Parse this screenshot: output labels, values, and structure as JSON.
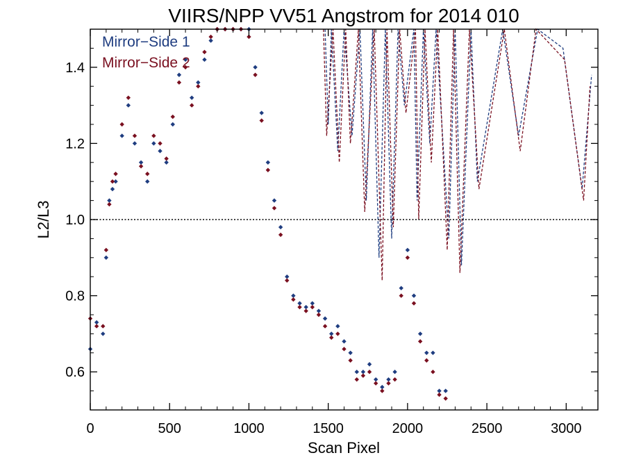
{
  "chart_data": {
    "type": "scatter",
    "title": "VIIRS/NPP VV51 Angstrom for 2014 010",
    "xlabel": "Scan Pixel",
    "ylabel": "L2/L3",
    "xlim": [
      0,
      3200
    ],
    "ylim": [
      0.5,
      1.5
    ],
    "xticks": [
      0,
      500,
      1000,
      1500,
      2000,
      2500,
      3000
    ],
    "yticks": [
      0.6,
      0.8,
      1.0,
      1.2,
      1.4
    ],
    "ytick_labels": [
      "0.6",
      "0.8",
      "1.0",
      "1.2",
      "1.4"
    ],
    "reference_line": 1.0,
    "legend_position": "top-left",
    "series": [
      {
        "name": "Mirror−Side 1",
        "color": "#1f3d80",
        "marker": "diamond",
        "x": [
          0,
          40,
          80,
          100,
          120,
          140,
          160,
          200,
          240,
          280,
          320,
          360,
          400,
          440,
          480,
          520,
          560,
          600,
          640,
          680,
          720,
          760,
          800,
          850,
          900,
          950,
          1000,
          1040,
          1080,
          1120,
          1160,
          1200,
          1240,
          1280,
          1320,
          1360,
          1400,
          1440,
          1480,
          1520,
          1560,
          1600,
          1640,
          1680,
          1720,
          1760,
          1800,
          1840,
          1880,
          1920,
          1960,
          2000,
          2040,
          2080,
          2120,
          2160,
          2200,
          2240
        ],
        "y": [
          0.66,
          0.73,
          0.7,
          0.9,
          1.05,
          1.08,
          1.1,
          1.22,
          1.3,
          1.2,
          1.15,
          1.1,
          1.2,
          1.18,
          1.15,
          1.25,
          1.38,
          1.42,
          1.32,
          1.36,
          1.42,
          1.47,
          1.5,
          1.5,
          1.5,
          1.5,
          1.5,
          1.4,
          1.28,
          1.15,
          1.05,
          0.98,
          0.85,
          0.8,
          0.78,
          0.77,
          0.78,
          0.76,
          0.74,
          0.7,
          0.72,
          0.68,
          0.65,
          0.6,
          0.6,
          0.62,
          0.58,
          0.56,
          0.58,
          0.6,
          0.82,
          0.92,
          0.8,
          0.7,
          0.65,
          0.65,
          0.55,
          0.55
        ]
      },
      {
        "name": "Mirror−Side 2",
        "color": "#7a1020",
        "marker": "diamond",
        "x": [
          0,
          40,
          80,
          100,
          120,
          140,
          160,
          200,
          240,
          280,
          320,
          360,
          400,
          440,
          480,
          520,
          560,
          600,
          640,
          680,
          720,
          760,
          800,
          850,
          900,
          950,
          1000,
          1040,
          1080,
          1120,
          1160,
          1200,
          1240,
          1280,
          1320,
          1360,
          1400,
          1440,
          1480,
          1520,
          1560,
          1600,
          1640,
          1680,
          1720,
          1760,
          1800,
          1840,
          1880,
          1920,
          1960,
          2000,
          2040,
          2080,
          2120,
          2160,
          2200,
          2240
        ],
        "y": [
          0.74,
          0.72,
          0.72,
          0.92,
          1.04,
          1.1,
          1.12,
          1.25,
          1.32,
          1.22,
          1.14,
          1.12,
          1.22,
          1.2,
          1.16,
          1.27,
          1.36,
          1.4,
          1.3,
          1.35,
          1.44,
          1.48,
          1.5,
          1.5,
          1.5,
          1.5,
          1.48,
          1.38,
          1.26,
          1.13,
          1.03,
          0.96,
          0.84,
          0.79,
          0.77,
          0.76,
          0.77,
          0.75,
          0.72,
          0.69,
          0.7,
          0.66,
          0.63,
          0.58,
          0.59,
          0.6,
          0.57,
          0.55,
          0.57,
          0.58,
          0.8,
          0.9,
          0.78,
          0.68,
          0.63,
          0.6,
          0.54,
          0.53
        ]
      }
    ],
    "dashed_spikes": [
      {
        "series": 0,
        "x": [
          1480,
          1500,
          1520,
          1560,
          1600,
          1650,
          1700,
          1740,
          1780,
          1820,
          1860,
          1900,
          1940,
          1980,
          2040,
          2060,
          2100,
          2140,
          2180,
          2260,
          2300,
          2340,
          2400,
          2440,
          2600,
          2700,
          2820,
          2980,
          3100,
          3160
        ],
        "y": [
          1.5,
          1.25,
          1.5,
          1.18,
          1.5,
          1.22,
          1.5,
          1.05,
          1.5,
          0.9,
          1.5,
          0.95,
          1.5,
          1.3,
          1.5,
          1.05,
          1.5,
          1.2,
          1.5,
          0.95,
          1.5,
          0.88,
          1.5,
          1.1,
          1.5,
          1.22,
          1.5,
          1.45,
          1.08,
          1.38
        ]
      },
      {
        "series": 1,
        "x": [
          1470,
          1490,
          1530,
          1570,
          1610,
          1640,
          1690,
          1730,
          1790,
          1840,
          1870,
          1910,
          1950,
          1990,
          2050,
          2070,
          2110,
          2150,
          2190,
          2250,
          2290,
          2330,
          2390,
          2450,
          2610,
          2710,
          2810,
          2990,
          3110,
          3150
        ],
        "y": [
          1.5,
          1.22,
          1.5,
          1.15,
          1.5,
          1.2,
          1.5,
          1.02,
          1.5,
          0.84,
          1.5,
          0.98,
          1.5,
          1.28,
          1.5,
          1.0,
          1.5,
          1.15,
          1.5,
          0.92,
          1.5,
          0.86,
          1.5,
          1.08,
          1.5,
          1.18,
          1.5,
          1.42,
          1.05,
          1.35
        ]
      }
    ]
  }
}
